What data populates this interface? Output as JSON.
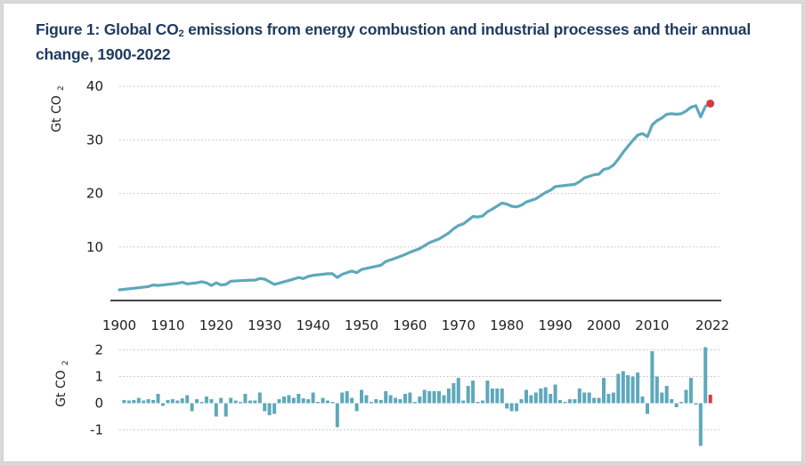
{
  "title": {
    "prefix": "Figure 1: Global CO",
    "sub": "2",
    "suffix": " emissions from energy combustion and industrial processes and their annual change, 1900-2022"
  },
  "colors": {
    "series": "#5ea8bb",
    "highlight": "#d93a3a",
    "title": "#1f3a5f",
    "grid": "#bdbdbd",
    "axis": "#444444"
  },
  "chart_data": [
    {
      "type": "line",
      "title": "Global CO2 emissions",
      "ylabel": "Gt CO2",
      "xlabel": "",
      "ylim": [
        0,
        40
      ],
      "yticks": [
        "10",
        "20",
        "30",
        "40"
      ],
      "ytick_values": [
        10,
        20,
        30,
        40
      ],
      "xticks": [
        "1900",
        "1910",
        "1920",
        "1930",
        "1940",
        "1950",
        "1960",
        "1970",
        "1980",
        "1990",
        "2000",
        "2010",
        "2022"
      ],
      "xtick_values": [
        1900,
        1910,
        1920,
        1930,
        1940,
        1950,
        1960,
        1970,
        1980,
        1990,
        2000,
        2010,
        2022
      ],
      "grid": "horizontal-dotted",
      "highlight_point": {
        "x": 2022,
        "y": 36.8
      },
      "x": [
        1900,
        1902,
        1904,
        1906,
        1907,
        1908,
        1910,
        1912,
        1913,
        1914,
        1916,
        1917,
        1918,
        1919,
        1920,
        1921,
        1922,
        1923,
        1925,
        1927,
        1928,
        1929,
        1930,
        1931,
        1932,
        1934,
        1936,
        1937,
        1938,
        1939,
        1940,
        1942,
        1943,
        1944,
        1945,
        1946,
        1948,
        1949,
        1950,
        1952,
        1954,
        1955,
        1957,
        1959,
        1960,
        1962,
        1964,
        1966,
        1968,
        1969,
        1970,
        1971,
        1972,
        1973,
        1974,
        1975,
        1976,
        1977,
        1979,
        1980,
        1981,
        1982,
        1983,
        1984,
        1986,
        1988,
        1989,
        1990,
        1992,
        1994,
        1995,
        1996,
        1998,
        1999,
        2000,
        2001,
        2002,
        2003,
        2004,
        2005,
        2006,
        2007,
        2008,
        2009,
        2010,
        2011,
        2012,
        2013,
        2014,
        2015,
        2016,
        2017,
        2018,
        2019,
        2020,
        2021,
        2022
      ],
      "y": [
        2.0,
        2.2,
        2.4,
        2.6,
        2.9,
        2.8,
        3.0,
        3.2,
        3.4,
        3.1,
        3.3,
        3.5,
        3.3,
        2.8,
        3.3,
        2.9,
        3.0,
        3.6,
        3.7,
        3.8,
        3.8,
        4.1,
        4.0,
        3.5,
        3.0,
        3.5,
        4.0,
        4.3,
        4.1,
        4.5,
        4.7,
        4.9,
        5.0,
        5.0,
        4.3,
        4.9,
        5.5,
        5.2,
        5.8,
        6.2,
        6.6,
        7.3,
        7.9,
        8.6,
        9.0,
        9.7,
        10.8,
        11.5,
        12.6,
        13.4,
        14.0,
        14.3,
        15.0,
        15.7,
        15.6,
        15.8,
        16.6,
        17.1,
        18.2,
        18.0,
        17.6,
        17.5,
        17.8,
        18.4,
        19.0,
        20.2,
        20.6,
        21.3,
        21.5,
        21.7,
        22.2,
        22.9,
        23.5,
        23.6,
        24.5,
        24.7,
        25.3,
        26.4,
        27.7,
        28.8,
        29.9,
        30.9,
        31.2,
        30.6,
        32.8,
        33.6,
        34.1,
        34.8,
        34.9,
        34.8,
        34.9,
        35.4,
        36.1,
        36.4,
        34.3,
        36.3,
        36.8
      ]
    },
    {
      "type": "bar",
      "title": "Annual change",
      "ylabel": "Gt CO2",
      "ylim": [
        -1.5,
        2.2
      ],
      "yticks": [
        "2",
        "1",
        "0",
        "-1"
      ],
      "ytick_values": [
        2,
        1,
        0,
        -1
      ],
      "grid": "horizontal-dotted",
      "highlight_bar": {
        "x": 2022,
        "value": 0.32
      },
      "x_start": 1901,
      "values": [
        0.12,
        0.1,
        0.12,
        0.2,
        0.1,
        0.15,
        0.12,
        0.35,
        -0.1,
        0.12,
        0.15,
        0.1,
        0.18,
        0.3,
        -0.3,
        0.15,
        0.05,
        0.25,
        0.15,
        -0.5,
        0.2,
        -0.5,
        0.2,
        0.1,
        0.05,
        0.35,
        0.1,
        0.1,
        0.4,
        -0.3,
        -0.45,
        -0.4,
        0.15,
        0.25,
        0.3,
        0.2,
        0.35,
        0.18,
        0.15,
        0.4,
        0.05,
        0.2,
        0.1,
        0.02,
        -0.9,
        0.4,
        0.45,
        0.2,
        -0.3,
        0.5,
        0.3,
        0.05,
        0.15,
        0.12,
        0.45,
        0.3,
        0.2,
        0.15,
        0.35,
        0.4,
        0.05,
        0.25,
        0.5,
        0.45,
        0.45,
        0.45,
        0.3,
        0.55,
        0.75,
        0.95,
        0.1,
        0.65,
        0.85,
        0.05,
        0.1,
        0.85,
        0.55,
        0.55,
        0.55,
        -0.2,
        -0.3,
        -0.3,
        0.15,
        0.5,
        0.3,
        0.4,
        0.55,
        0.6,
        0.35,
        0.7,
        0.12,
        0.05,
        0.15,
        0.15,
        0.55,
        0.4,
        0.4,
        0.2,
        0.2,
        0.95,
        0.35,
        0.4,
        1.1,
        1.2,
        1.05,
        1.0,
        1.15,
        0.25,
        -0.4,
        1.95,
        1.0,
        0.4,
        0.65,
        0.15,
        -0.15,
        0.05,
        0.5,
        0.95,
        -0.05,
        -1.6,
        2.1,
        0.32
      ]
    }
  ]
}
